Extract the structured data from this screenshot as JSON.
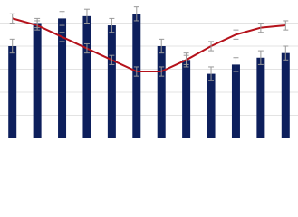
{
  "chart_data": {
    "type": "bar",
    "categories": [
      null,
      null,
      null,
      null,
      null,
      null,
      null,
      null,
      null,
      null,
      null,
      null
    ],
    "series": [
      {
        "type": "bar",
        "color": "#0d1f5c",
        "values": [
          4.0,
          5.0,
          5.2,
          5.3,
          4.9,
          5.4,
          4.0,
          3.4,
          2.8,
          3.2,
          3.5,
          3.7
        ],
        "errors": [
          0.3,
          0.2,
          0.3,
          0.3,
          0.3,
          0.3,
          0.3,
          0.3,
          0.3,
          0.3,
          0.3,
          0.3
        ]
      },
      {
        "type": "line",
        "color": "#b5121b",
        "values": [
          5.2,
          4.9,
          4.4,
          3.9,
          3.4,
          2.9,
          2.9,
          3.4,
          4.0,
          4.5,
          4.8,
          4.9
        ],
        "errors": [
          0.2,
          0.2,
          0.2,
          0.2,
          0.2,
          0.2,
          0.2,
          0.2,
          0.2,
          0.2,
          0.2,
          0.2
        ]
      }
    ],
    "ylim": [
      0,
      6
    ],
    "yticks": [
      1,
      2,
      3,
      4,
      5
    ],
    "grid": true
  }
}
